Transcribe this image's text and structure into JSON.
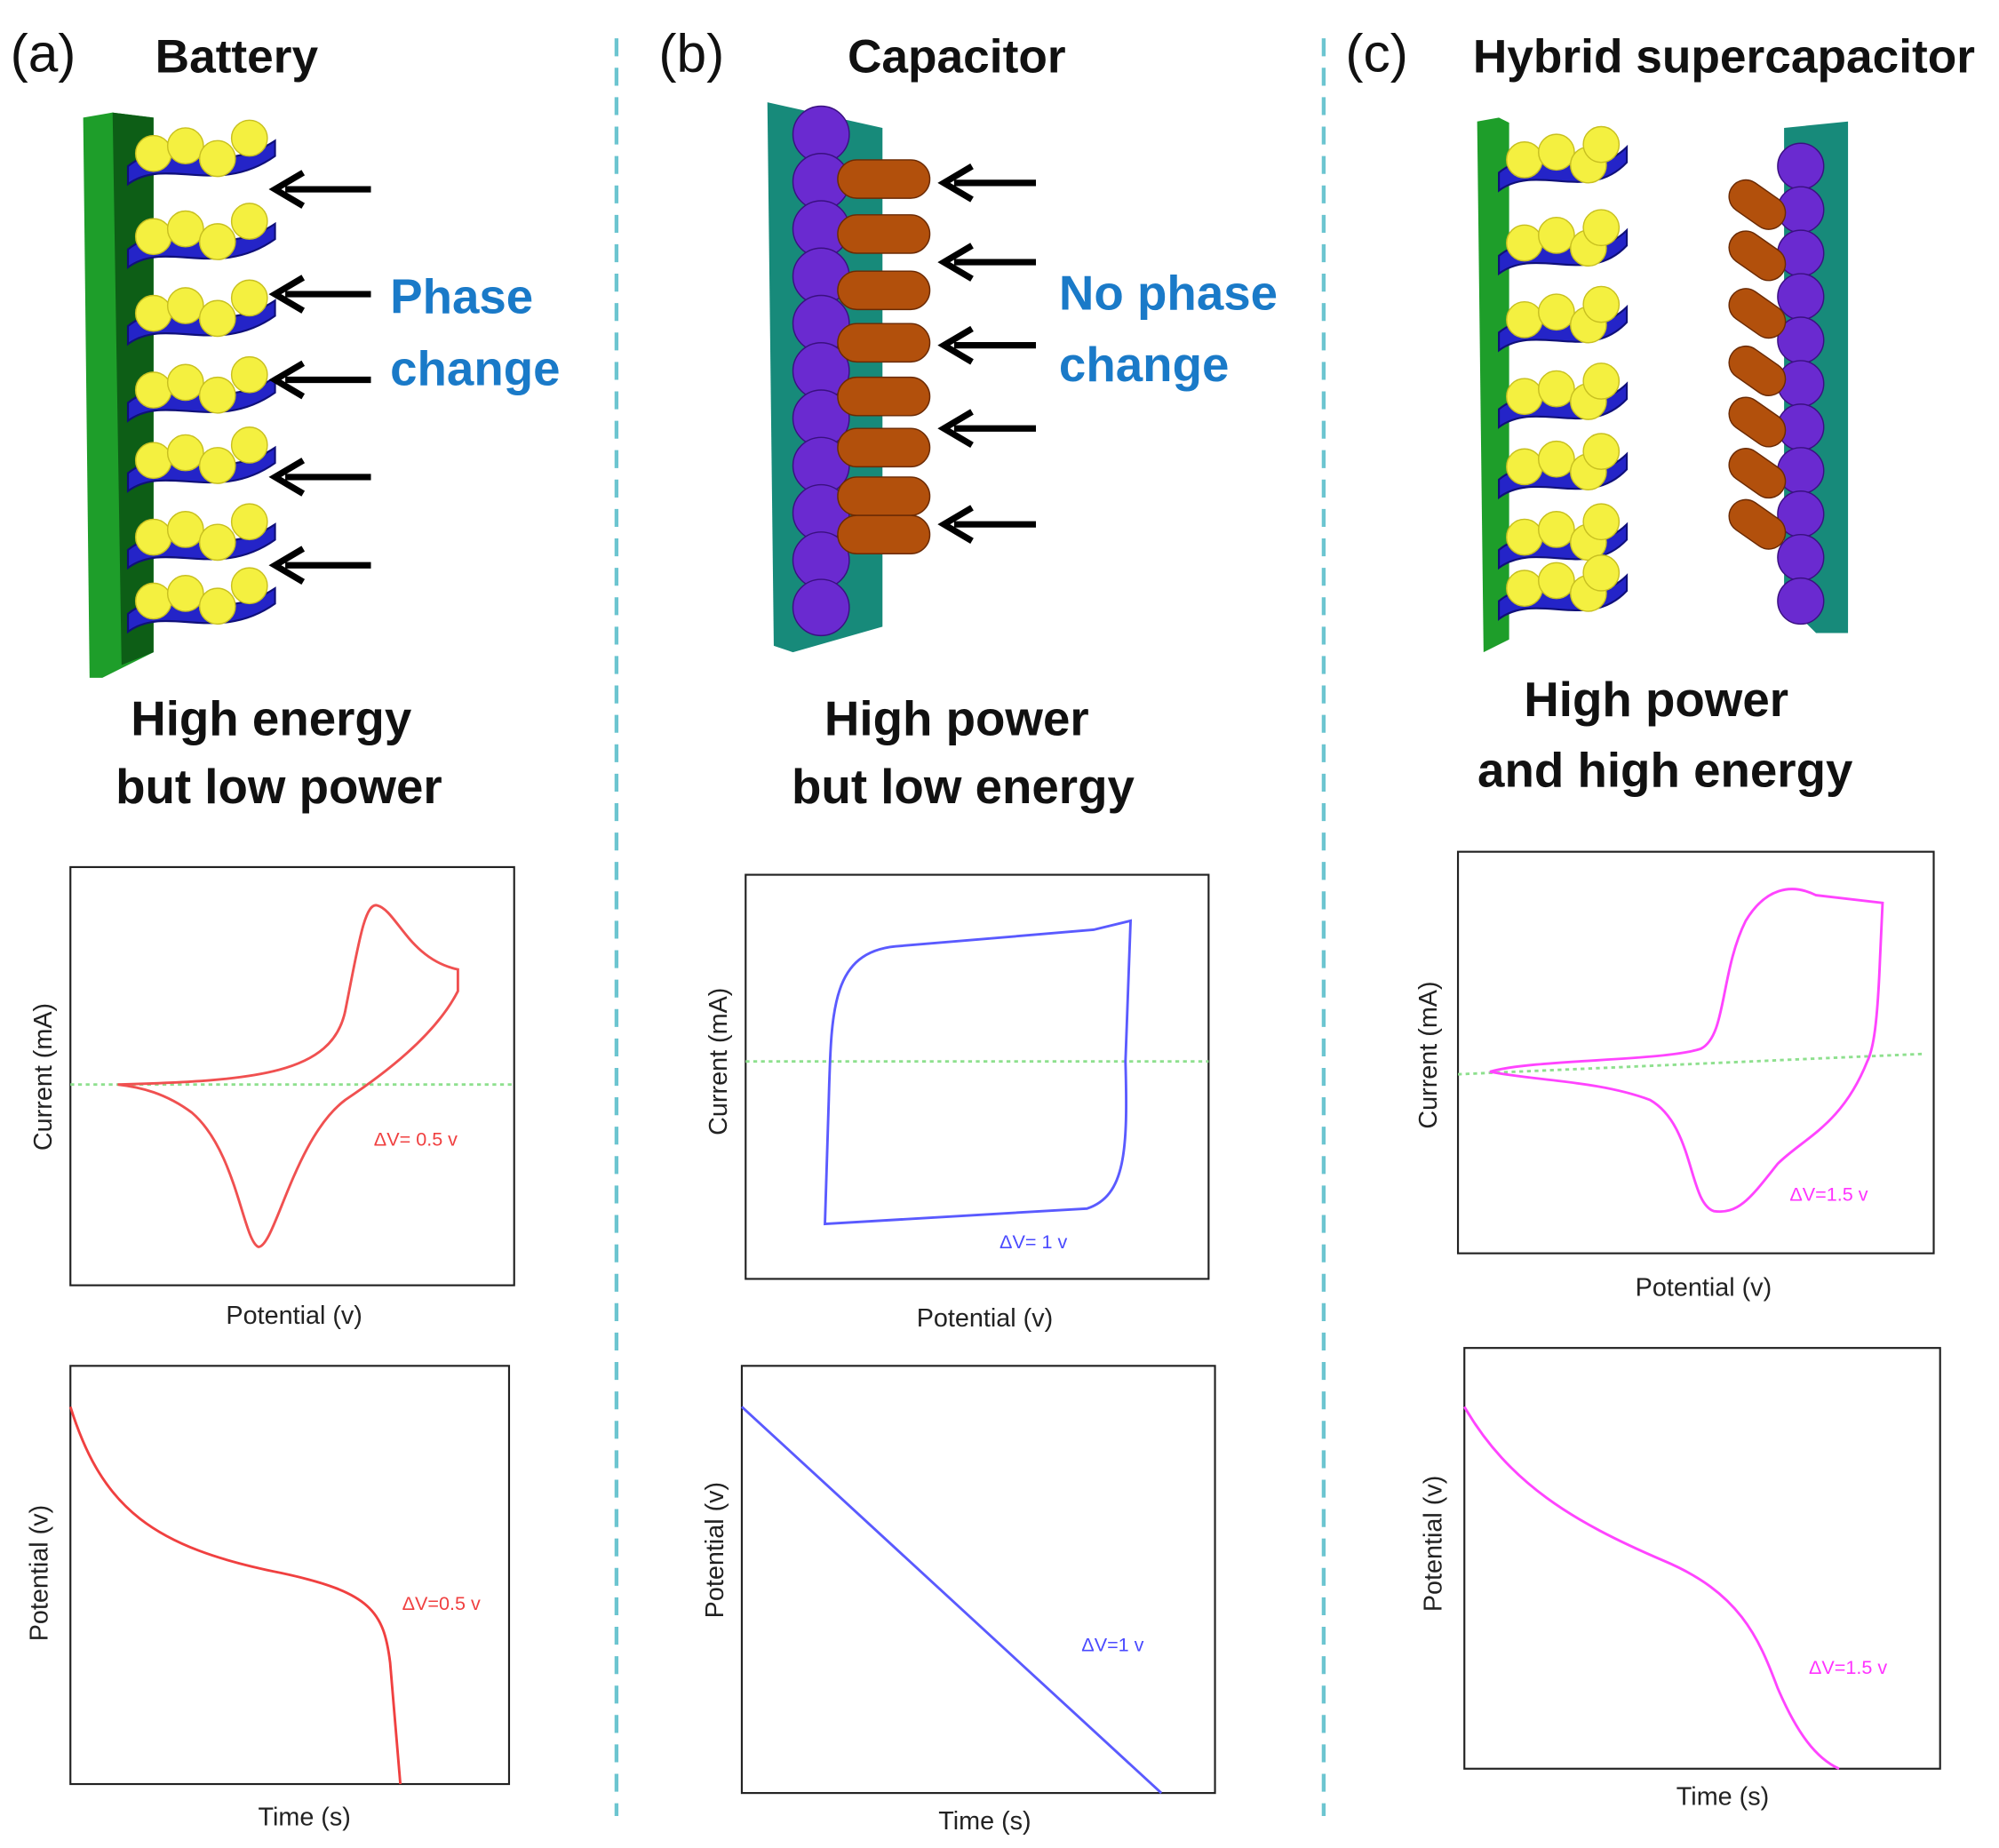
{
  "panels": [
    {
      "label": "(a)",
      "title": "Battery",
      "note": [
        "Phase",
        "change"
      ],
      "caption": [
        "High  energy",
        "but low power"
      ],
      "cv": {
        "y_label": "Current (mA)",
        "x_label": "Potential (v)",
        "annotation": "ΔV= 0.5 v"
      },
      "gcd": {
        "y_label": "Potential (v)",
        "x_label": "Time (s)",
        "annotation": "ΔV=0.5 v"
      }
    },
    {
      "label": "(b)",
      "title": "Capacitor",
      "note": [
        "No phase",
        "change"
      ],
      "caption": [
        "High  power",
        "but low energy"
      ],
      "cv": {
        "y_label": "Current (mA)",
        "x_label": "Potential (v)",
        "annotation": "ΔV= 1 v"
      },
      "gcd": {
        "y_label": "Potential (v)",
        "x_label": "Time (s)",
        "annotation": "ΔV=1 v"
      }
    },
    {
      "label": "(c)",
      "title": "Hybrid supercapacitor",
      "caption": [
        "High  power",
        "and high energy"
      ],
      "cv": {
        "y_label": "Current (mA)",
        "x_label": "Potential (v)",
        "annotation": "ΔV=1.5 v"
      },
      "gcd": {
        "y_label": "Potential (v)",
        "x_label": "Time (s)",
        "annotation": "ΔV=1.5 v"
      }
    }
  ]
}
